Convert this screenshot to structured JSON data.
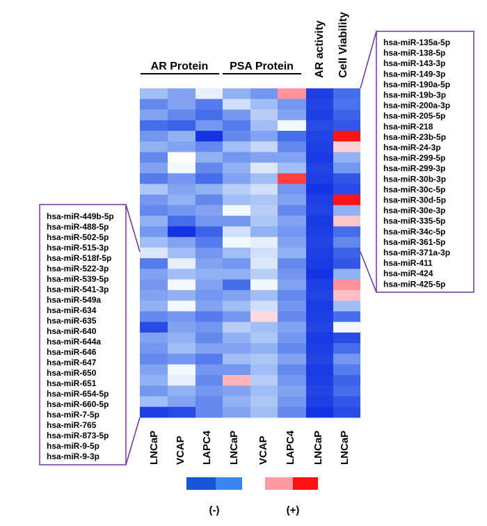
{
  "chart_data": {
    "type": "heatmap",
    "title": "",
    "group_labels": [
      "AR Protein",
      "PSA Protein"
    ],
    "column_top_labels": [
      "AR activity",
      "Cell Viability"
    ],
    "columns": [
      "LNCaP",
      "VCAP",
      "LAPC4",
      "LNCaP",
      "VCAP",
      "LAPC4",
      "LNCaP",
      "LNCaP"
    ],
    "legend": {
      "negative_label": "(-)",
      "positive_label": "(+)",
      "negative_colors": [
        "#1554d6",
        "#3a86ee"
      ],
      "positive_colors": [
        "#ff9aa0",
        "#ff1010"
      ]
    },
    "colors": {
      "strong_blue": "#0a2fe0",
      "mid_blue": "#5a82ee",
      "light_blue": "#a9c2f4",
      "white": "#ffffff",
      "light_red": "#ffb3b8",
      "red": "#ff2020",
      "bracket": "#7030a0"
    },
    "mirna_top_right": [
      "hsa-miR-135a-5p",
      "hsa-miR-138-5p",
      "hsa-miR-143-3p",
      "hsa-miR-149-3p",
      "hsa-miR-190a-5p",
      "hsa-miR-19b-3p",
      "hsa-miR-200a-3p",
      "hsa-miR-205-5p",
      "hsa-miR-218",
      "hsa-miR-23b-5p",
      "hsa-miR-24-3p",
      "hsa-miR-299-5p",
      "hsa-miR-299-3p",
      "hsa-miR-30b-3p",
      "hsa-miR-30c-5p",
      "hsa-miR-30d-5p",
      "hsa-miR-30e-3p",
      "hsa-miR-335-5p",
      "hsa-miR-34c-5p",
      "hsa-miR-361-5p",
      "hsa-miR-371a-3p",
      "hsa-miR-411",
      "hsa-miR-424",
      "hsa-miR-425-5p"
    ],
    "mirna_bottom_left": [
      "hsa-miR-449b-5p",
      "hsa-miR-488-5p",
      "hsa-miR-502-5p",
      "hsa-miR-515-3p",
      "hsa-miR-518f-5p",
      "hsa-miR-522-3p",
      "hsa-miR-539-5p",
      "hsa-miR-541-3p",
      "hsa-miR-549a",
      "hsa-miR-634",
      "hsa-miR-635",
      "hsa-miR-640",
      "hsa-miR-644a",
      "hsa-miR-646",
      "hsa-miR-647",
      "hsa-miR-650",
      "hsa-miR-651",
      "hsa-miR-654-5p",
      "hsa-miR-660-5p",
      "hsa-miR-7-5p",
      "hsa-miR-765",
      "hsa-miR-873-5p",
      "hsa-miR-9-5p",
      "hsa-miR-9-3p"
    ],
    "value_scale": "-1 = strong decrease (dark blue), 0 = no change (white), +1 = strong increase (red)",
    "values": [
      [
        -0.4,
        -0.5,
        -0.1,
        -0.45,
        -0.55,
        0.55,
        -0.9,
        -0.7
      ],
      [
        -0.6,
        -0.5,
        -0.65,
        -0.2,
        -0.4,
        -0.55,
        -0.88,
        -0.68
      ],
      [
        -0.5,
        -0.6,
        -0.7,
        -0.55,
        -0.3,
        -0.5,
        -0.9,
        -0.75
      ],
      [
        -0.7,
        -0.75,
        -0.55,
        -0.65,
        -0.4,
        -0.05,
        -0.85,
        -0.8
      ],
      [
        -0.55,
        -0.45,
        -0.95,
        -0.6,
        -0.5,
        -0.7,
        -0.88,
        1.0
      ],
      [
        -0.45,
        -0.5,
        -0.6,
        -0.4,
        -0.25,
        -0.6,
        -0.9,
        0.25
      ],
      [
        -0.6,
        0.0,
        -0.45,
        -0.55,
        -0.5,
        -0.5,
        -0.92,
        -0.45
      ],
      [
        -0.5,
        -0.05,
        -0.6,
        -0.45,
        -0.15,
        -0.4,
        -0.88,
        -0.55
      ],
      [
        -0.65,
        -0.55,
        -0.7,
        -0.5,
        -0.4,
        0.85,
        -0.9,
        -0.8
      ],
      [
        -0.35,
        -0.5,
        -0.45,
        -0.3,
        -0.2,
        -0.55,
        -0.95,
        -0.85
      ],
      [
        -0.55,
        -0.45,
        -0.6,
        -0.4,
        -0.35,
        -0.5,
        -0.9,
        1.0
      ],
      [
        -0.6,
        -0.55,
        -0.5,
        -0.05,
        -0.3,
        -0.6,
        -0.88,
        -0.45
      ],
      [
        -0.45,
        -0.7,
        -0.55,
        -0.55,
        -0.35,
        -0.5,
        -0.92,
        0.3
      ],
      [
        -0.55,
        -0.95,
        -0.75,
        -0.2,
        -0.45,
        -0.55,
        -0.9,
        -0.7
      ],
      [
        -0.4,
        -0.5,
        -0.65,
        -0.05,
        -0.1,
        -0.5,
        -0.88,
        -0.6
      ],
      [
        -0.15,
        -0.4,
        -0.55,
        -0.4,
        -0.2,
        -0.45,
        -0.9,
        -0.75
      ],
      [
        -0.65,
        -0.1,
        -0.5,
        -0.55,
        -0.15,
        -0.6,
        -0.92,
        -0.8
      ],
      [
        -0.5,
        -0.4,
        -0.45,
        -0.45,
        -0.3,
        -0.55,
        -0.95,
        -0.45
      ],
      [
        -0.55,
        -0.05,
        -0.5,
        -0.7,
        -0.05,
        -0.5,
        -0.9,
        0.55
      ],
      [
        -0.5,
        -0.45,
        -0.55,
        -0.5,
        -0.4,
        -0.6,
        -0.88,
        0.35
      ],
      [
        -0.45,
        -0.05,
        -0.5,
        -0.4,
        -0.2,
        -0.55,
        -0.92,
        -0.4
      ],
      [
        -0.6,
        -0.55,
        -0.65,
        -0.55,
        0.2,
        -0.6,
        -0.9,
        -0.7
      ],
      [
        -0.85,
        -0.5,
        -0.55,
        -0.3,
        -0.4,
        -0.5,
        -0.88,
        -0.05
      ],
      [
        -0.5,
        -0.45,
        -0.6,
        -0.45,
        -0.35,
        -0.55,
        -0.92,
        -0.85
      ],
      [
        -0.55,
        -0.4,
        -0.5,
        -0.5,
        -0.45,
        -0.6,
        -0.9,
        -0.7
      ],
      [
        -0.6,
        -0.55,
        -0.65,
        -0.4,
        -0.35,
        -0.5,
        -0.88,
        -0.55
      ],
      [
        -0.5,
        -0.05,
        -0.55,
        -0.55,
        -0.4,
        -0.6,
        -0.92,
        -0.65
      ],
      [
        -0.45,
        -0.1,
        -0.6,
        0.4,
        -0.3,
        -0.55,
        -0.9,
        -0.75
      ],
      [
        -0.55,
        -0.45,
        -0.55,
        -0.5,
        -0.4,
        -0.5,
        -0.88,
        -0.7
      ],
      [
        -0.4,
        -0.5,
        -0.6,
        -0.45,
        -0.35,
        -0.55,
        -0.9,
        -0.8
      ],
      [
        -0.9,
        -0.85,
        -0.6,
        -0.5,
        -0.4,
        -0.6,
        -0.95,
        -0.85
      ]
    ]
  }
}
